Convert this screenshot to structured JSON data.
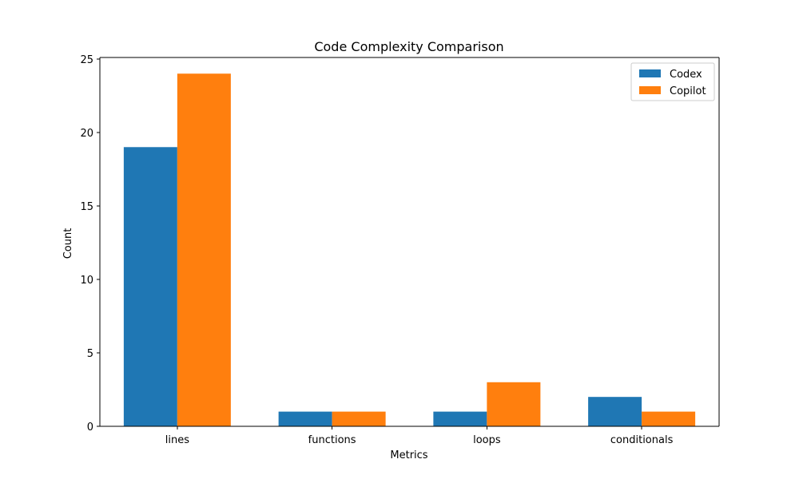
{
  "chart_data": {
    "type": "bar",
    "title": "Code Complexity Comparison",
    "xlabel": "Metrics",
    "ylabel": "Count",
    "categories": [
      "lines",
      "functions",
      "loops",
      "conditionals"
    ],
    "series": [
      {
        "name": "Codex",
        "values": [
          19,
          1,
          1,
          2
        ],
        "color": "#1f77b4"
      },
      {
        "name": "Copilot",
        "values": [
          24,
          1,
          3,
          1
        ],
        "color": "#ff7f0e"
      }
    ],
    "ylim": [
      0,
      25
    ],
    "yticks": [
      "0",
      "5",
      "10",
      "15",
      "20",
      "25"
    ],
    "grid": false,
    "legend_position": "top-right"
  }
}
